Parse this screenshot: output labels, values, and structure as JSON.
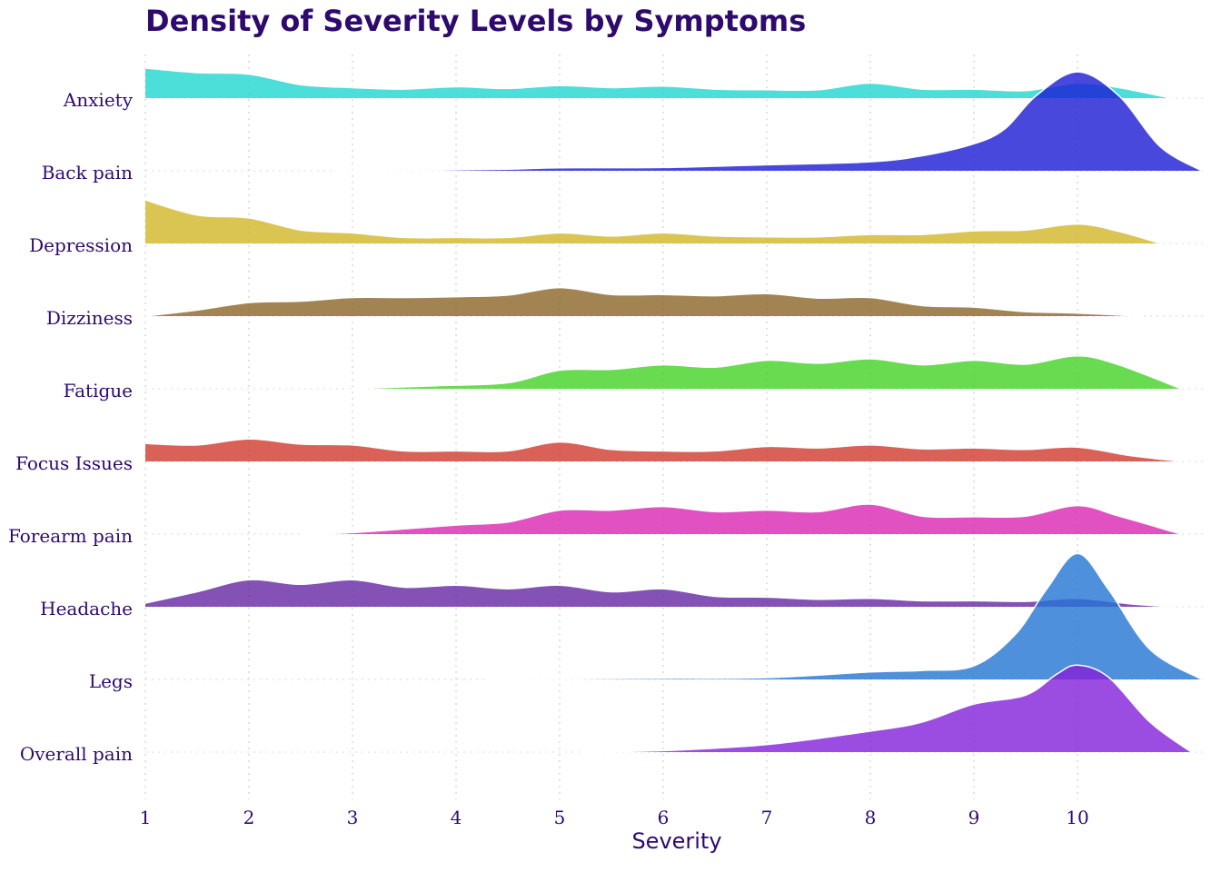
{
  "chart_data": {
    "type": "ridgeline",
    "title": "Density of Severity Levels by Symptoms",
    "xlabel": "Severity",
    "ylabel": "",
    "xlim": [
      1,
      11.2
    ],
    "x_ticks": [
      1,
      2,
      3,
      4,
      5,
      6,
      7,
      8,
      9,
      10
    ],
    "grid": "vertical dotted at integer x",
    "legend": "none",
    "series": [
      {
        "name": "Anxiety",
        "color": "#1fd6d0",
        "points": [
          [
            1,
            1.0
          ],
          [
            1.5,
            0.85
          ],
          [
            2,
            0.8
          ],
          [
            2.5,
            0.45
          ],
          [
            3,
            0.35
          ],
          [
            3.5,
            0.3
          ],
          [
            4,
            0.38
          ],
          [
            4.5,
            0.32
          ],
          [
            5,
            0.42
          ],
          [
            5.5,
            0.35
          ],
          [
            6,
            0.4
          ],
          [
            6.5,
            0.3
          ],
          [
            7,
            0.28
          ],
          [
            7.5,
            0.28
          ],
          [
            8,
            0.5
          ],
          [
            8.5,
            0.3
          ],
          [
            9,
            0.3
          ],
          [
            9.5,
            0.25
          ],
          [
            10,
            0.5
          ],
          [
            10.4,
            0.35
          ],
          [
            10.9,
            0.0
          ]
        ]
      },
      {
        "name": "Back pain",
        "color": "#1c1ad4",
        "points": [
          [
            2.8,
            0.0
          ],
          [
            3.7,
            0.02
          ],
          [
            4.5,
            0.05
          ],
          [
            5,
            0.1
          ],
          [
            6,
            0.11
          ],
          [
            7,
            0.2
          ],
          [
            8,
            0.3
          ],
          [
            8.5,
            0.5
          ],
          [
            9,
            0.9
          ],
          [
            9.3,
            1.4
          ],
          [
            9.6,
            2.5
          ],
          [
            10,
            3.3
          ],
          [
            10.4,
            2.5
          ],
          [
            10.8,
            0.8
          ],
          [
            11.2,
            0.0
          ]
        ]
      },
      {
        "name": "Depression",
        "color": "#d2b627",
        "points": [
          [
            1,
            1.45
          ],
          [
            1.5,
            0.95
          ],
          [
            2,
            0.85
          ],
          [
            2.5,
            0.45
          ],
          [
            3,
            0.35
          ],
          [
            3.5,
            0.2
          ],
          [
            4,
            0.2
          ],
          [
            4.5,
            0.2
          ],
          [
            5,
            0.35
          ],
          [
            5.5,
            0.25
          ],
          [
            6,
            0.35
          ],
          [
            6.5,
            0.25
          ],
          [
            7,
            0.22
          ],
          [
            7.5,
            0.22
          ],
          [
            8,
            0.3
          ],
          [
            8.5,
            0.3
          ],
          [
            9,
            0.42
          ],
          [
            9.5,
            0.45
          ],
          [
            10,
            0.65
          ],
          [
            10.4,
            0.4
          ],
          [
            10.8,
            0.0
          ]
        ]
      },
      {
        "name": "Dizziness",
        "color": "#8b6528",
        "points": [
          [
            1,
            0.0
          ],
          [
            1.5,
            0.2
          ],
          [
            2,
            0.45
          ],
          [
            2.5,
            0.5
          ],
          [
            3,
            0.62
          ],
          [
            3.5,
            0.62
          ],
          [
            4,
            0.65
          ],
          [
            4.5,
            0.7
          ],
          [
            5,
            0.95
          ],
          [
            5.5,
            0.72
          ],
          [
            6,
            0.72
          ],
          [
            6.5,
            0.68
          ],
          [
            7,
            0.75
          ],
          [
            7.5,
            0.6
          ],
          [
            8,
            0.62
          ],
          [
            8.5,
            0.35
          ],
          [
            9,
            0.3
          ],
          [
            9.5,
            0.15
          ],
          [
            10,
            0.1
          ],
          [
            10.6,
            0.0
          ]
        ]
      },
      {
        "name": "Fatigue",
        "color": "#44d226",
        "points": [
          [
            3.0,
            0.0
          ],
          [
            3.8,
            0.1
          ],
          [
            4.5,
            0.2
          ],
          [
            5,
            0.62
          ],
          [
            5.5,
            0.65
          ],
          [
            6,
            0.8
          ],
          [
            6.5,
            0.72
          ],
          [
            7,
            0.95
          ],
          [
            7.5,
            0.85
          ],
          [
            8,
            1.0
          ],
          [
            8.5,
            0.8
          ],
          [
            9,
            0.95
          ],
          [
            9.5,
            0.82
          ],
          [
            10,
            1.1
          ],
          [
            10.4,
            0.8
          ],
          [
            11.0,
            0.0
          ]
        ]
      },
      {
        "name": "Focus Issues",
        "color": "#d13a2e",
        "points": [
          [
            1,
            0.6
          ],
          [
            1.5,
            0.55
          ],
          [
            2,
            0.75
          ],
          [
            2.5,
            0.58
          ],
          [
            3,
            0.55
          ],
          [
            3.5,
            0.35
          ],
          [
            4,
            0.35
          ],
          [
            4.5,
            0.35
          ],
          [
            5,
            0.65
          ],
          [
            5.5,
            0.4
          ],
          [
            6,
            0.35
          ],
          [
            6.5,
            0.35
          ],
          [
            7,
            0.5
          ],
          [
            7.5,
            0.45
          ],
          [
            8,
            0.55
          ],
          [
            8.5,
            0.42
          ],
          [
            9,
            0.45
          ],
          [
            9.5,
            0.4
          ],
          [
            10,
            0.48
          ],
          [
            10.5,
            0.2
          ],
          [
            11.0,
            0.0
          ]
        ]
      },
      {
        "name": "Forearm pain",
        "color": "#d926b2",
        "points": [
          [
            2.5,
            0.0
          ],
          [
            3,
            0.05
          ],
          [
            4,
            0.3
          ],
          [
            4.5,
            0.4
          ],
          [
            5,
            0.8
          ],
          [
            5.5,
            0.8
          ],
          [
            6,
            0.92
          ],
          [
            6.5,
            0.75
          ],
          [
            7,
            0.8
          ],
          [
            7.5,
            0.75
          ],
          [
            8,
            1.0
          ],
          [
            8.5,
            0.6
          ],
          [
            9,
            0.58
          ],
          [
            9.5,
            0.6
          ],
          [
            10,
            0.95
          ],
          [
            10.4,
            0.6
          ],
          [
            11.0,
            0.0
          ]
        ]
      },
      {
        "name": "Headache",
        "color": "#6526a3",
        "points": [
          [
            1,
            0.12
          ],
          [
            1.5,
            0.5
          ],
          [
            2,
            0.9
          ],
          [
            2.5,
            0.75
          ],
          [
            3,
            0.9
          ],
          [
            3.5,
            0.65
          ],
          [
            4,
            0.72
          ],
          [
            4.5,
            0.6
          ],
          [
            5,
            0.72
          ],
          [
            5.5,
            0.5
          ],
          [
            6,
            0.6
          ],
          [
            6.5,
            0.35
          ],
          [
            7,
            0.32
          ],
          [
            7.5,
            0.25
          ],
          [
            8,
            0.28
          ],
          [
            8.5,
            0.2
          ],
          [
            9,
            0.2
          ],
          [
            9.5,
            0.18
          ],
          [
            10,
            0.28
          ],
          [
            10.5,
            0.1
          ],
          [
            10.9,
            0.0
          ]
        ]
      },
      {
        "name": "Legs",
        "color": "#2374d4",
        "points": [
          [
            4.3,
            0.0
          ],
          [
            5,
            0.02
          ],
          [
            6,
            0.04
          ],
          [
            7,
            0.06
          ],
          [
            8,
            0.25
          ],
          [
            8.5,
            0.3
          ],
          [
            9,
            0.45
          ],
          [
            9.4,
            1.5
          ],
          [
            9.7,
            3.0
          ],
          [
            10,
            4.2
          ],
          [
            10.3,
            3.0
          ],
          [
            10.7,
            1.0
          ],
          [
            11.2,
            0.0
          ]
        ]
      },
      {
        "name": "Overall pain",
        "color": "#8320d9",
        "points": [
          [
            5.2,
            0.0
          ],
          [
            6,
            0.05
          ],
          [
            7,
            0.25
          ],
          [
            8,
            0.7
          ],
          [
            8.5,
            1.0
          ],
          [
            9,
            1.6
          ],
          [
            9.5,
            1.9
          ],
          [
            9.8,
            2.6
          ],
          [
            10,
            2.9
          ],
          [
            10.3,
            2.5
          ],
          [
            10.7,
            1.0
          ],
          [
            11.1,
            0.0
          ]
        ]
      }
    ]
  }
}
